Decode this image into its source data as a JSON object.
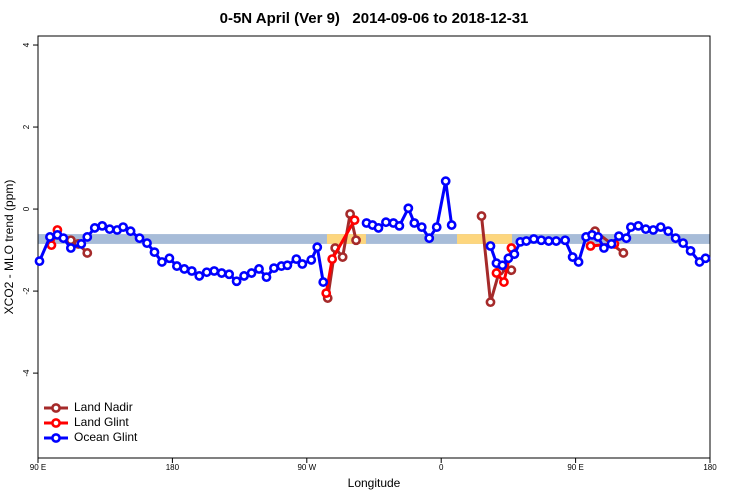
{
  "chart_data": {
    "type": "line",
    "title": "0-5N April (Ver 9)   2014-09-06 to 2018-12-31",
    "x_label": "Longitude",
    "y_label": "XCO2 - MLO trend (ppm)",
    "xlim": [
      90,
      540
    ],
    "xticks": [
      {
        "value": 90,
        "label": "90 E"
      },
      {
        "value": 180,
        "label": "180"
      },
      {
        "value": 270,
        "label": "90 W"
      },
      {
        "value": 360,
        "label": "0"
      },
      {
        "value": 450,
        "label": "90 E"
      },
      {
        "value": 540,
        "label": "180"
      }
    ],
    "ylim": [
      -6.07,
      4.22
    ],
    "yticks": [
      -4,
      -2,
      0,
      2,
      4
    ],
    "legend": "bottom-left",
    "band": {
      "ylim": [
        -0.85,
        -0.61
      ],
      "color": "#a7bcd8",
      "highlights": [
        [
          283.5,
          309.6
        ],
        [
          370.6,
          407.4
        ]
      ],
      "highlight_color": "#fdd67e"
    },
    "series": [
      {
        "name": "Land Nadir",
        "color": "#a52a2a",
        "x": [
          112,
          117,
          123,
          null,
          284,
          289,
          294,
          299,
          303,
          null,
          387,
          393,
          399,
          407,
          null,
          463,
          482
        ],
        "values": [
          -0.76,
          -0.85,
          -1.07,
          null,
          -2.17,
          -0.95,
          -1.17,
          -0.12,
          -0.76,
          null,
          -0.17,
          -2.27,
          -1.51,
          -1.49,
          null,
          -0.54,
          -1.07
        ]
      },
      {
        "name": "Land Glint",
        "color": "#ff0000",
        "x": [
          99,
          103,
          null,
          283,
          287,
          302,
          null,
          397,
          402,
          407,
          null,
          460,
          476
        ],
        "values": [
          -0.88,
          -0.51,
          null,
          -2.05,
          -1.22,
          -0.27,
          null,
          -1.56,
          -1.78,
          -0.95,
          null,
          -0.9,
          -0.85
        ]
      },
      {
        "name": "Ocean Glint",
        "color": "#0000ff",
        "x": [
          91,
          98,
          103,
          107,
          112,
          119,
          123,
          128,
          133,
          138,
          143,
          147,
          152,
          158,
          163,
          168,
          173,
          178,
          183,
          188,
          193,
          198,
          203,
          208,
          213,
          218,
          223,
          228,
          233,
          238,
          243,
          248,
          253,
          257,
          263,
          267,
          273,
          277,
          281,
          null,
          310,
          314,
          318,
          323,
          328,
          332,
          338,
          342,
          347,
          352,
          357,
          363,
          367,
          null,
          393,
          397,
          401,
          405,
          409,
          413,
          417,
          422,
          427,
          432,
          437,
          443,
          448,
          452,
          457,
          461,
          465,
          469,
          474,
          479,
          484,
          487,
          492,
          497,
          502,
          507,
          512,
          517,
          522,
          527,
          533,
          537
        ],
        "values": [
          -1.27,
          -0.68,
          -0.63,
          -0.71,
          -0.95,
          -0.85,
          -0.68,
          -0.46,
          -0.41,
          -0.49,
          -0.51,
          -0.44,
          -0.54,
          -0.71,
          -0.83,
          -1.05,
          -1.29,
          -1.2,
          -1.39,
          -1.46,
          -1.51,
          -1.63,
          -1.54,
          -1.51,
          -1.56,
          -1.59,
          -1.76,
          -1.63,
          -1.56,
          -1.46,
          -1.66,
          -1.44,
          -1.39,
          -1.37,
          -1.22,
          -1.34,
          -1.24,
          -0.93,
          -1.78,
          null,
          -0.34,
          -0.39,
          -0.46,
          -0.32,
          -0.34,
          -0.41,
          0.02,
          -0.34,
          -0.44,
          -0.71,
          -0.44,
          0.68,
          -0.39,
          null,
          -0.9,
          -1.32,
          -1.37,
          -1.2,
          -1.1,
          -0.8,
          -0.78,
          -0.73,
          -0.76,
          -0.78,
          -0.78,
          -0.76,
          -1.17,
          -1.29,
          -0.68,
          -0.63,
          -0.68,
          -0.95,
          -0.85,
          -0.66,
          -0.71,
          -0.44,
          -0.41,
          -0.49,
          -0.51,
          -0.44,
          -0.54,
          -0.71,
          -0.83,
          -1.02,
          -1.29,
          -1.2
        ]
      }
    ]
  }
}
